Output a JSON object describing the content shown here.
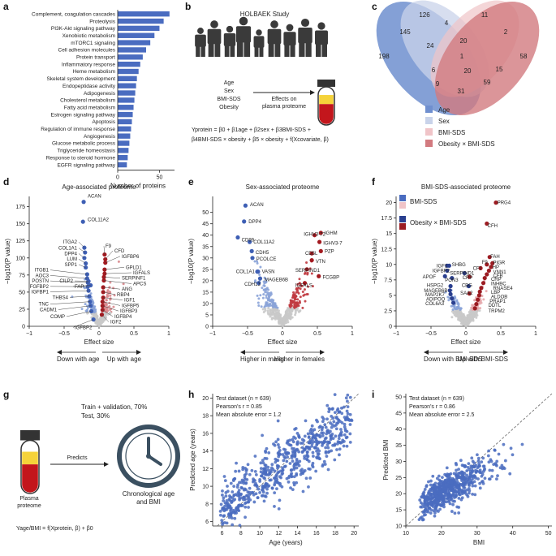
{
  "panels": {
    "a": "a",
    "b": "b",
    "c": "c",
    "d": "d",
    "e": "e",
    "f": "f",
    "g": "g",
    "h": "h",
    "i": "i"
  },
  "panel_b": {
    "title": "HOLBAEK Study",
    "covariates": [
      "Age",
      "Sex",
      "BMI-SDS",
      "Obesity"
    ],
    "arrow_label_1": "Effects on",
    "arrow_label_2": "plasma proteome",
    "equation_line1": "Yprotein = β0 + β1age + β2sex + β3BMI-SDS +",
    "equation_line2": "β4BMI-SDS × obesity + β5 × obesity + f(Xcovariate, β)"
  },
  "panel_c": {
    "regions": [
      {
        "label": "126"
      },
      {
        "label": "11"
      },
      {
        "label": "145"
      },
      {
        "label": "4"
      },
      {
        "label": "2"
      },
      {
        "label": "24"
      },
      {
        "label": "20"
      },
      {
        "label": "198"
      },
      {
        "label": "1"
      },
      {
        "label": "58"
      },
      {
        "label": "6"
      },
      {
        "label": "20"
      },
      {
        "label": "15"
      },
      {
        "label": "9"
      },
      {
        "label": "59"
      },
      {
        "label": "31"
      }
    ],
    "legend": [
      {
        "label": "Age",
        "color": "#6f8fcf"
      },
      {
        "label": "Sex",
        "color": "#c9d3ea"
      },
      {
        "label": "BMI-SDS",
        "color": "#f0c4c8"
      },
      {
        "label": "Obesity × BMI-SDS",
        "color": "#d27a7f"
      }
    ]
  },
  "panel_g": {
    "split_1": "Train + validation, 70%",
    "split_2": "Test, 30%",
    "tube_label_1": "Plasma",
    "tube_label_2": "proteome",
    "arrow_label": "Predicts",
    "target_1": "Chronological age",
    "target_2": "and BMI",
    "equation": "Yage/BMI = f(Xprotein, β) + β0"
  },
  "chart_data": [
    {
      "panel": "a",
      "type": "bar",
      "orientation": "horizontal",
      "categories": [
        "Complement, coagulation cascades",
        "Proteolysis",
        "PI3K-Akt signaling pathway",
        "Xenobiotic metabolism",
        "mTORC1 signaling",
        "Cell adhesion molecules",
        "Protein transport",
        "Inflammatory response",
        "Heme metabolism",
        "Skeletal system development",
        "Endopeptidase activity",
        "Adipogenesis",
        "Cholesterol metabolism",
        "Fatty acid metabolism",
        "Estrogen signaling pathway",
        "Apoptosis",
        "Regulation of immune response",
        "Angiogenesis",
        "Glucose metabolic process",
        "Triglyceride homeostasis",
        "Response to steroid hormone",
        "EGFR signaling pathway"
      ],
      "values": [
        62,
        55,
        50,
        44,
        39,
        34,
        30,
        27,
        25,
        23,
        22,
        21,
        20,
        19,
        18,
        17,
        16,
        15,
        14,
        13,
        12,
        11
      ],
      "xlabel": "Number of proteins",
      "xticks": [
        0,
        50
      ],
      "xlim": [
        0,
        68
      ],
      "color": "#4a6cc0"
    },
    {
      "panel": "d",
      "type": "scatter",
      "title": "Age-associated proteome",
      "xlabel": "Effect size",
      "ylabel": "−log10(P value)",
      "xlim": [
        -1.0,
        1.0
      ],
      "ylim": [
        0,
        190
      ],
      "xticks": [
        -1.0,
        -0.5,
        0,
        0.5,
        1.0
      ],
      "yticks": [
        0,
        25,
        50,
        75,
        100,
        125,
        150,
        175
      ],
      "direction_left": "Down with age",
      "direction_right": "Up with age",
      "highlighted": [
        {
          "label": "ACAN",
          "x": -0.22,
          "y": 182,
          "group": "down"
        },
        {
          "label": "COL11A2",
          "x": -0.23,
          "y": 153,
          "group": "down"
        },
        {
          "label": "ITGA2",
          "x": -0.21,
          "y": 115,
          "group": "down"
        },
        {
          "label": "COL1A1",
          "x": -0.2,
          "y": 108,
          "group": "down"
        },
        {
          "label": "DPP4",
          "x": -0.21,
          "y": 100,
          "group": "down"
        },
        {
          "label": "LUM",
          "x": -0.19,
          "y": 92,
          "group": "down"
        },
        {
          "label": "SPP1",
          "x": -0.19,
          "y": 86,
          "group": "down"
        },
        {
          "label": "ITGB1",
          "x": -0.17,
          "y": 76,
          "group": "down"
        },
        {
          "label": "AOC3",
          "x": -0.17,
          "y": 70,
          "group": "down"
        },
        {
          "label": "POSTN",
          "x": -0.16,
          "y": 64,
          "group": "down"
        },
        {
          "label": "FGFBP2",
          "x": -0.16,
          "y": 58,
          "group": "down"
        },
        {
          "label": "IGFBP1",
          "x": -0.15,
          "y": 52,
          "group": "down"
        },
        {
          "label": "CILP2",
          "x": -0.15,
          "y": 66,
          "group": "down"
        },
        {
          "label": "FAP",
          "x": -0.12,
          "y": 60,
          "group": "down"
        },
        {
          "label": "THBS4",
          "x": -0.14,
          "y": 44,
          "group": "down"
        },
        {
          "label": "TNC",
          "x": -0.13,
          "y": 36,
          "group": "down"
        },
        {
          "label": "CADM1",
          "x": -0.12,
          "y": 30,
          "group": "down"
        },
        {
          "label": "COMP",
          "x": -0.11,
          "y": 22,
          "group": "down"
        },
        {
          "label": "IGFBP2",
          "x": -0.08,
          "y": 10,
          "group": "down"
        },
        {
          "label": "F9",
          "x": 0.08,
          "y": 105,
          "group": "up"
        },
        {
          "label": "CFD",
          "x": 0.09,
          "y": 98,
          "group": "up"
        },
        {
          "label": "IGFBP6",
          "x": 0.09,
          "y": 93,
          "group": "up"
        },
        {
          "label": "GPLD1",
          "x": 0.08,
          "y": 83,
          "group": "up"
        },
        {
          "label": "IGFALS",
          "x": 0.08,
          "y": 77,
          "group": "up"
        },
        {
          "label": "SERPINF1",
          "x": 0.07,
          "y": 72,
          "group": "up"
        },
        {
          "label": "APCS",
          "x": 0.07,
          "y": 67,
          "group": "up"
        },
        {
          "label": "ANG",
          "x": 0.06,
          "y": 57,
          "group": "up"
        },
        {
          "label": "RBP4",
          "x": 0.06,
          "y": 50,
          "group": "up"
        },
        {
          "label": "IGF1",
          "x": 0.06,
          "y": 42,
          "group": "up"
        },
        {
          "label": "IGFBP5",
          "x": 0.05,
          "y": 36,
          "group": "up"
        },
        {
          "label": "IGFBP3",
          "x": 0.05,
          "y": 30,
          "group": "up"
        },
        {
          "label": "IGFBP4",
          "x": 0.05,
          "y": 24,
          "group": "up"
        },
        {
          "label": "IGF2",
          "x": 0.04,
          "y": 17,
          "group": "up"
        }
      ]
    },
    {
      "panel": "e",
      "type": "scatter",
      "title": "Sex-associated proteome",
      "xlabel": "Effect size",
      "ylabel": "−log10(P value)",
      "xlim": [
        -1.0,
        1.0
      ],
      "ylim": [
        0,
        57
      ],
      "xticks": [
        -1.0,
        -0.5,
        0,
        0.5,
        1.0
      ],
      "yticks": [
        0,
        5,
        10,
        15,
        20,
        25,
        30,
        35,
        40,
        45,
        50
      ],
      "direction_left": "Higher in males",
      "direction_right": "Higher in females",
      "highlighted": [
        {
          "label": "ACAN",
          "x": -0.53,
          "y": 53,
          "group": "male"
        },
        {
          "label": "DPP4",
          "x": -0.55,
          "y": 46,
          "group": "male"
        },
        {
          "label": "CD99",
          "x": -0.64,
          "y": 39,
          "group": "male"
        },
        {
          "label": "COL11A2",
          "x": -0.47,
          "y": 37,
          "group": "male"
        },
        {
          "label": "CDH5",
          "x": -0.44,
          "y": 33,
          "group": "male"
        },
        {
          "label": "PCOLCE",
          "x": -0.43,
          "y": 30,
          "group": "male"
        },
        {
          "label": "COL1A1",
          "x": -0.36,
          "y": 24,
          "group": "male"
        },
        {
          "label": "VASN",
          "x": -0.35,
          "y": 24,
          "group": "male"
        },
        {
          "label": "MAGEB6B",
          "x": -0.32,
          "y": 21,
          "group": "male"
        },
        {
          "label": "CDH13",
          "x": -0.34,
          "y": 19,
          "group": "male"
        },
        {
          "label": "IGHM",
          "x": 0.55,
          "y": 41,
          "group": "female"
        },
        {
          "label": "IGHV3-72",
          "x": 0.46,
          "y": 40,
          "group": "female"
        },
        {
          "label": "IGHV3-7",
          "x": 0.53,
          "y": 37,
          "group": "female"
        },
        {
          "label": "PZP",
          "x": 0.55,
          "y": 33,
          "group": "female"
        },
        {
          "label": "CD5L",
          "x": 0.42,
          "y": 32,
          "group": "female"
        },
        {
          "label": "VTN",
          "x": 0.42,
          "y": 29,
          "group": "female"
        },
        {
          "label": "SERPIND1",
          "x": 0.35,
          "y": 25,
          "group": "female"
        },
        {
          "label": "FCGBP",
          "x": 0.52,
          "y": 22,
          "group": "female"
        },
        {
          "label": "IGFALS",
          "x": 0.32,
          "y": 19,
          "group": "female"
        }
      ]
    },
    {
      "panel": "f",
      "type": "scatter",
      "title": "BMI-SDS-associated proteome",
      "xlabel": "Effect size",
      "ylabel": "−log10(P value)",
      "xlim": [
        -1.0,
        1.0
      ],
      "ylim": [
        0,
        21
      ],
      "xticks": [
        -1.0,
        -0.5,
        0,
        0.5,
        1.0
      ],
      "yticks": [
        0,
        2.5,
        5.0,
        7.5,
        10.0,
        12.5,
        15.0,
        17.5,
        20.0
      ],
      "direction_left": "Down with BMI-SDS",
      "direction_right": "Up with BMI-SDS",
      "legend": [
        {
          "label": "BMI-SDS",
          "colors": [
            "#4a6cc0",
            "#f0c4c8"
          ]
        },
        {
          "label": "Obesity × BMI-SDS",
          "colors": [
            "#2a3f8f",
            "#9b1c22"
          ]
        }
      ],
      "highlighted": [
        {
          "label": "PRG4",
          "x": 0.43,
          "y": 20,
          "group": "up"
        },
        {
          "label": "CFH",
          "x": 0.3,
          "y": 16.6,
          "group": "up"
        },
        {
          "label": "FAH",
          "x": 0.34,
          "y": 11.2,
          "group": "up"
        },
        {
          "label": "PIGR",
          "x": 0.38,
          "y": 10.2,
          "group": "up"
        },
        {
          "label": "F9",
          "x": 0.3,
          "y": 10,
          "group": "up"
        },
        {
          "label": "HP",
          "x": 0.36,
          "y": 9.6,
          "group": "up"
        },
        {
          "label": "CFI",
          "x": 0.21,
          "y": 9.4,
          "group": "up"
        },
        {
          "label": "VNN1",
          "x": 0.33,
          "y": 9,
          "group": "up"
        },
        {
          "label": "CFB",
          "x": 0.3,
          "y": 8.4,
          "group": "up"
        },
        {
          "label": "CRP",
          "x": 0.27,
          "y": 7.8,
          "group": "up"
        },
        {
          "label": "INHBC",
          "x": 0.25,
          "y": 7,
          "group": "up"
        },
        {
          "label": "RNASE4",
          "x": 0.22,
          "y": 6.2,
          "group": "up"
        },
        {
          "label": "LBP",
          "x": 0.2,
          "y": 5.6,
          "group": "up"
        },
        {
          "label": "ALDOB",
          "x": 0.19,
          "y": 5,
          "group": "up"
        },
        {
          "label": "PRAP1",
          "x": 0.17,
          "y": 4.3,
          "group": "up"
        },
        {
          "label": "DDTL",
          "x": 0.15,
          "y": 3.6,
          "group": "up"
        },
        {
          "label": "TRPM2",
          "x": 0.13,
          "y": 2.9,
          "group": "up"
        },
        {
          "label": "CRP",
          "x": 0.05,
          "y": 8,
          "group": "up"
        },
        {
          "label": "CBG",
          "x": 0.04,
          "y": 6.5,
          "group": "down"
        },
        {
          "label": "SAA2",
          "x": 0.05,
          "y": 5.3,
          "group": "up"
        },
        {
          "label": "SERPIND1",
          "x": -0.02,
          "y": 8.6,
          "group": "down"
        },
        {
          "label": "IGF1",
          "x": -0.27,
          "y": 9.8,
          "group": "down"
        },
        {
          "label": "SHBG",
          "x": -0.24,
          "y": 9.8,
          "group": "down"
        },
        {
          "label": "IGFBP2",
          "x": -0.27,
          "y": 9,
          "group": "down"
        },
        {
          "label": "PON3",
          "x": -0.2,
          "y": 7.8,
          "group": "down"
        },
        {
          "label": "APOF",
          "x": -0.3,
          "y": 8.1,
          "group": "down"
        },
        {
          "label": "HSPG2",
          "x": -0.22,
          "y": 6.5,
          "group": "down"
        },
        {
          "label": "MAGEB6B",
          "x": -0.23,
          "y": 5.8,
          "group": "down"
        },
        {
          "label": "MAP2K7",
          "x": -0.22,
          "y": 5.2,
          "group": "down"
        },
        {
          "label": "ADIPOQ",
          "x": -0.2,
          "y": 4.5,
          "group": "down"
        },
        {
          "label": "COL6A3",
          "x": -0.18,
          "y": 3.8,
          "group": "down"
        }
      ]
    },
    {
      "panel": "h",
      "type": "scatter",
      "xlabel": "Age (years)",
      "ylabel": "Predicted age (years)",
      "xlim": [
        5,
        20.5
      ],
      "ylim": [
        5.5,
        20.5
      ],
      "xticks": [
        6,
        8,
        10,
        12,
        14,
        16,
        18,
        20
      ],
      "yticks": [
        6,
        8,
        10,
        12,
        14,
        16,
        18,
        20
      ],
      "annotation": [
        "Test dataset (n = 639)",
        "Pearson's r = 0.85",
        "Mean absolute error = 1.2"
      ],
      "n_points": 639,
      "pearson_r": 0.85,
      "mae": 1.2,
      "identity_line": true,
      "color": "#4a6cc0"
    },
    {
      "panel": "i",
      "type": "scatter",
      "xlabel": "BMI",
      "ylabel": "Predicted BMI",
      "xlim": [
        10,
        51
      ],
      "ylim": [
        10,
        51
      ],
      "xticks": [
        10,
        20,
        30,
        40,
        50
      ],
      "yticks": [
        10,
        15,
        20,
        25,
        30,
        35,
        40,
        45,
        50
      ],
      "annotation": [
        "Test dataset (n = 639)",
        "Pearson's r = 0.86",
        "Mean absolute error = 2.5"
      ],
      "n_points": 639,
      "pearson_r": 0.86,
      "mae": 2.5,
      "identity_line": true,
      "color": "#4a6cc0"
    }
  ]
}
